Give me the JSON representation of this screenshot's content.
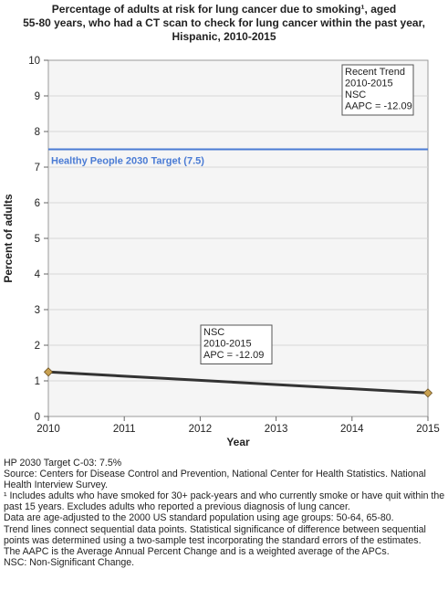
{
  "title": "Percentage of adults at risk for lung cancer due to smoking¹, aged\n55-80 years, who had a CT scan to check for lung cancer within the past year,\nHispanic,  2010-2015",
  "chart_data": {
    "type": "line",
    "title": "Percentage of adults at risk for lung cancer due to smoking¹, aged 55-80 years, who had a CT scan to check for lung cancer within the past year, Hispanic, 2010-2015",
    "xlabel": "Year",
    "ylabel": "Percent of adults",
    "xlim": [
      2010,
      2015
    ],
    "ylim": [
      0,
      10
    ],
    "x_ticks": [
      "2010",
      "2011",
      "2012",
      "2013",
      "2014",
      "2015"
    ],
    "y_ticks": [
      "0",
      "1",
      "2",
      "3",
      "4",
      "5",
      "6",
      "7",
      "8",
      "9",
      "10"
    ],
    "grid": true,
    "series": [
      {
        "x": [
          2010,
          2015
        ],
        "y": [
          1.25,
          0.66
        ],
        "color": "#333333",
        "marker_color": "#c8a050"
      }
    ],
    "target": {
      "value": 7.5,
      "label": "Healthy People 2030 Target (7.5)",
      "color": "#4a7bd4"
    },
    "annotations": [
      {
        "lines": [
          "Recent Trend",
          "2010-2015",
          "NSC",
          "AAPC = -12.09"
        ],
        "anchor": "top-right"
      },
      {
        "lines": [
          "NSC",
          "2010-2015",
          "APC = -12.09"
        ],
        "anchor": "above-line"
      }
    ]
  },
  "notes": [
    "HP 2030 Target C-03: 7.5%",
    "Source: Centers for Disease Control and Prevention, National Center for Health Statistics. National Health Interview Survey.",
    "¹ Includes adults who have smoked for 30+ pack-years and who currently smoke or have quit within the past 15 years. Excludes adults who reported a previous diagnosis of lung cancer.",
    "Data are age-adjusted to the 2000 US standard population using age groups: 50-64, 65-80.",
    "Trend lines connect sequential data points. Statistical significance of difference between sequential points was determined using a two-sample test incorporating the standard errors of the estimates.",
    "The AAPC is the Average Annual Percent Change and is a weighted average of the APCs.",
    "NSC: Non-Significant Change."
  ]
}
